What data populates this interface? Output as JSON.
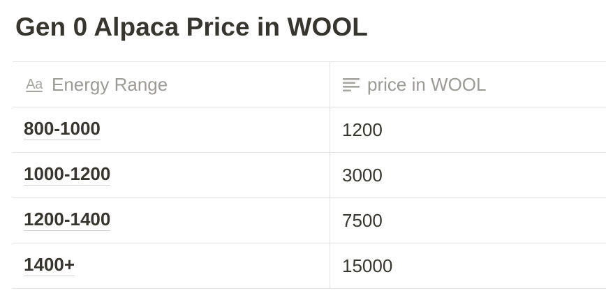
{
  "page": {
    "title": "Gen 0 Alpaca Price in WOOL"
  },
  "table": {
    "columns": [
      {
        "label": "Energy Range",
        "icon": "text-property-icon"
      },
      {
        "label": "price in WOOL",
        "icon": "lines-icon"
      }
    ],
    "header_icon_glyph": "Aa",
    "rows": [
      {
        "range": "800-1000",
        "price": "1200"
      },
      {
        "range": "1000-1200",
        "price": "3000"
      },
      {
        "range": "1200-1400",
        "price": "7500"
      },
      {
        "range": "1400+",
        "price": "15000"
      }
    ]
  }
}
